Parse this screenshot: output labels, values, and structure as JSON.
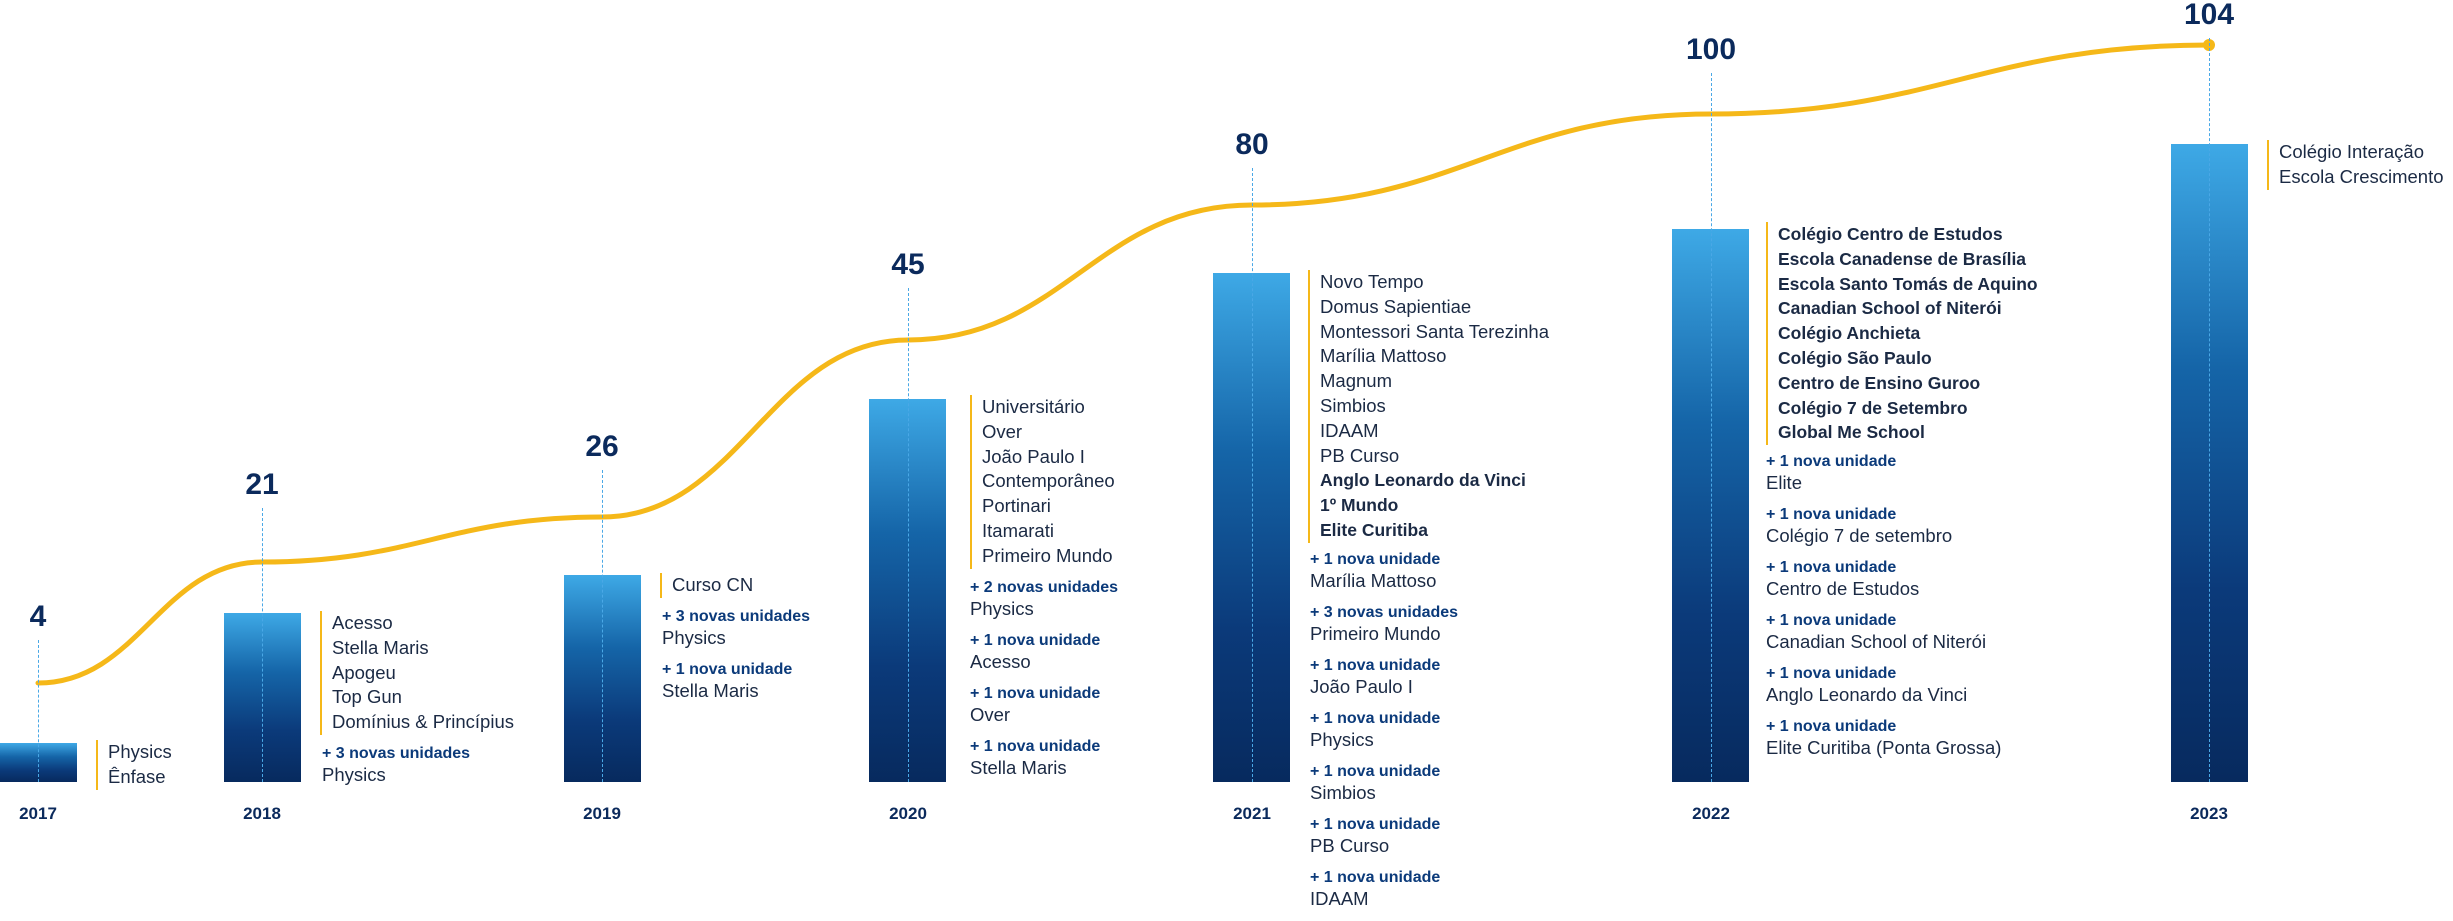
{
  "chart_data": {
    "type": "bar",
    "categories": [
      "2017",
      "2018",
      "2019",
      "2020",
      "2021",
      "2022",
      "2023"
    ],
    "values": [
      4,
      21,
      26,
      45,
      80,
      100,
      104
    ],
    "colors": {
      "bar_top": "#3ea9e6",
      "bar_bottom": "#072a5e",
      "line": "#f5b819",
      "text_dark": "#0b2a5c"
    },
    "years": [
      {
        "year": "2017",
        "total": "4",
        "schools": [
          "Physics",
          "Ênfase"
        ],
        "additions": []
      },
      {
        "year": "2018",
        "total": "21",
        "schools": [
          "Acesso",
          "Stella Maris",
          "Apogeu",
          "Top Gun",
          "Domínius & Princípius"
        ],
        "additions": [
          {
            "tag": "+ 3 novas unidades",
            "name": "Physics"
          }
        ]
      },
      {
        "year": "2019",
        "total": "26",
        "schools": [
          "Curso CN"
        ],
        "additions": [
          {
            "tag": "+ 3 novas unidades",
            "name": "Physics"
          },
          {
            "tag": "+ 1 nova unidade",
            "name": "Stella Maris"
          }
        ]
      },
      {
        "year": "2020",
        "total": "45",
        "schools": [
          "Universitário",
          "Over",
          "João Paulo I",
          "Contemporâneo",
          "Portinari",
          "Itamarati",
          "Primeiro Mundo"
        ],
        "additions": [
          {
            "tag": "+ 2 novas unidades",
            "name": "Physics"
          },
          {
            "tag": "+ 1 nova unidade",
            "name": "Acesso"
          },
          {
            "tag": "+ 1 nova unidade",
            "name": "Over"
          },
          {
            "tag": "+ 1 nova unidade",
            "name": "Stella Maris"
          }
        ]
      },
      {
        "year": "2021",
        "total": "80",
        "schools": [
          "Novo Tempo",
          "Domus Sapientiae",
          "Montessori Santa Terezinha",
          "Marília Mattoso",
          "Magnum",
          "Simbios",
          "IDAAM",
          "PB Curso",
          "Anglo Leonardo da Vinci",
          "1º Mundo",
          "Elite Curitiba"
        ],
        "additions": [
          {
            "tag": "+ 1 nova unidade",
            "name": "Marília Mattoso"
          },
          {
            "tag": "+ 3 novas unidades",
            "name": "Primeiro Mundo"
          },
          {
            "tag": "+ 1 nova unidade",
            "name": "João Paulo I"
          },
          {
            "tag": "+ 1 nova unidade",
            "name": "Physics"
          },
          {
            "tag": "+ 1 nova unidade",
            "name": "Simbios"
          },
          {
            "tag": "+ 1 nova unidade",
            "name": "PB Curso"
          },
          {
            "tag": "+ 1 nova unidade",
            "name": "IDAAM"
          }
        ]
      },
      {
        "year": "2022",
        "total": "100",
        "schools": [
          "Colégio Centro de Estudos",
          "Escola Canadense de Brasília",
          "Escola Santo Tomás de Aquino",
          "Canadian School of Niterói",
          "Colégio Anchieta",
          "Colégio São Paulo",
          "Centro de Ensino Guroo",
          "Colégio 7 de Setembro",
          "Global Me School"
        ],
        "additions": [
          {
            "tag": "+ 1 nova unidade",
            "name": "Elite"
          },
          {
            "tag": "+ 1 nova unidade",
            "name": "Colégio 7 de setembro"
          },
          {
            "tag": "+ 1 nova unidade",
            "name": "Centro de Estudos"
          },
          {
            "tag": "+ 1 nova unidade",
            "name": "Canadian School of Niterói"
          },
          {
            "tag": "+ 1 nova unidade",
            "name": "Anglo Leonardo da Vinci"
          },
          {
            "tag": "+ 1 nova unidade",
            "name": "Elite Curitiba (Ponta Grossa)"
          }
        ]
      },
      {
        "year": "2023",
        "total": "104",
        "schools": [
          "Colégio Interação",
          "Escola Crescimento"
        ],
        "additions": []
      }
    ]
  }
}
